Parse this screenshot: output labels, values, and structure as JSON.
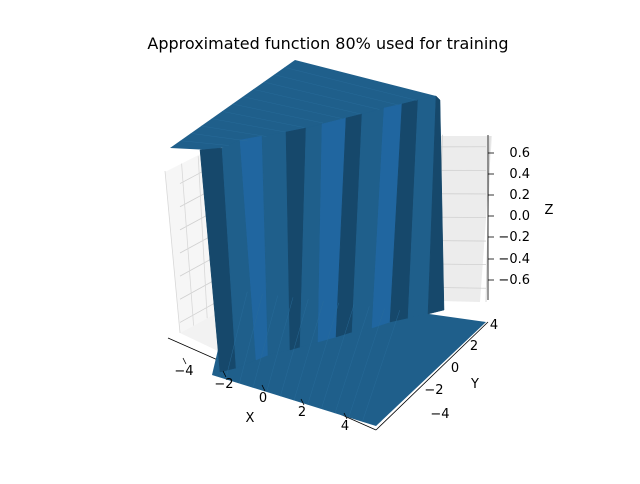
{
  "chart_data": {
    "type": "surface3d",
    "title": "Approximated function 80% used for training",
    "xlabel": "X",
    "ylabel": "Y",
    "zlabel": "Z",
    "xlim": [
      -5,
      5
    ],
    "ylim": [
      -5,
      5
    ],
    "zlim": [
      -0.7,
      0.7
    ],
    "x_ticks": [
      "−4",
      "−2",
      "0",
      "2",
      "4"
    ],
    "y_ticks": [
      "−4",
      "−2",
      "0",
      "2",
      "4"
    ],
    "z_ticks": [
      "−0.6",
      "−0.4",
      "−0.2",
      "0.0",
      "0.2",
      "0.4",
      "0.6"
    ],
    "grid": true,
    "surface_color": "#1f5f8b",
    "surface": {
      "low_level": -0.7,
      "high_level": 0.7,
      "step_at_x": -2.5,
      "description_values": "z ≈ -0.7 for x < -2.5, z ≈ +0.7 for x > -2.5 along the step front"
    }
  }
}
